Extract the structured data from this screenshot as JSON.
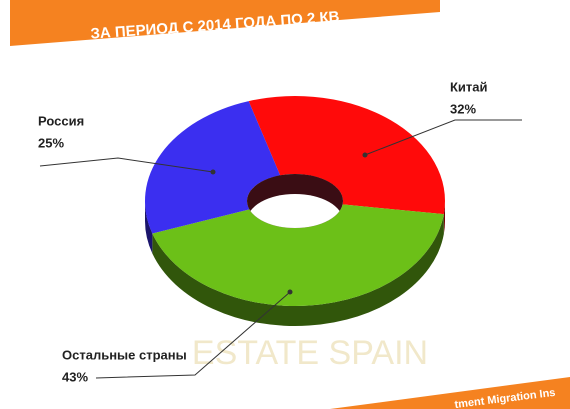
{
  "chart_data": {
    "type": "donut3d",
    "title": "ЗА ПЕРИОД С 2014 ГОДА ПО 2 КВ",
    "categories": [
      "Китай",
      "Остальные страны",
      "Россия"
    ],
    "values": [
      32,
      43,
      25
    ],
    "value_labels": [
      "32%",
      "43%",
      "25%"
    ],
    "colors": [
      "#ff0a0a",
      "#6cc018",
      "#3b2ff0"
    ],
    "watermark": "ESTATE SPAIN",
    "footer": "tment Migration Ins"
  }
}
